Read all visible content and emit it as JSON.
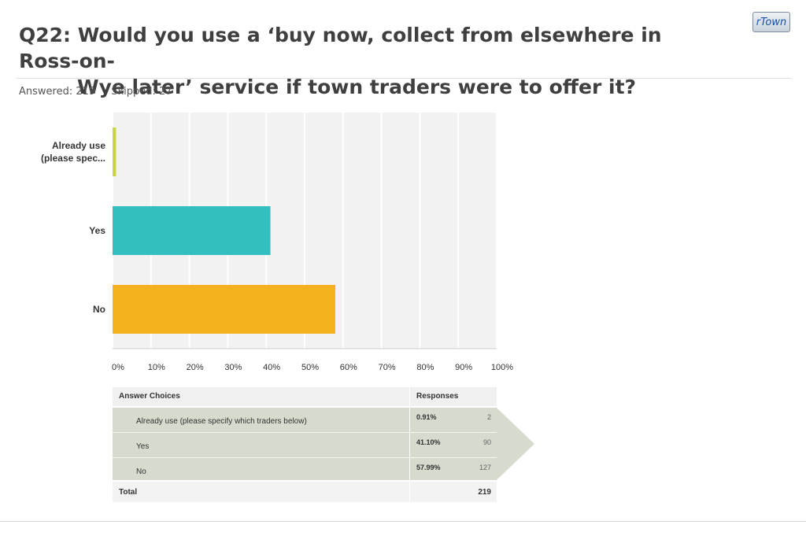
{
  "header": {
    "title_line1": "Q22: Would you use a ‘buy now, collect from elsewhere in Ross-on-",
    "title_line2": "Wye later’ service if town traders were to offer it?",
    "logo_prefix": "r",
    "logo_suffix": "Town",
    "answered": "Answered: 219",
    "skipped": "Skipped: 27"
  },
  "chart_data": {
    "type": "bar",
    "orientation": "horizontal",
    "categories": [
      "Already use (please spec...",
      "Yes",
      "No"
    ],
    "values": [
      0.91,
      41.1,
      57.99
    ],
    "colors": [
      "#c8d640",
      "#33bfc0",
      "#f5b21f"
    ],
    "xlim": [
      0,
      100
    ],
    "xticks": [
      "0%",
      "10%",
      "20%",
      "30%",
      "40%",
      "50%",
      "60%",
      "70%",
      "80%",
      "90%",
      "100%"
    ],
    "grid": true
  },
  "table": {
    "header": {
      "choices": "Answer Choices",
      "responses": "Responses"
    },
    "rows": [
      {
        "label": "Already use (please specify which traders below)",
        "percent": "0.91%",
        "count": "2"
      },
      {
        "label": "Yes",
        "percent": "41.10%",
        "count": "90"
      },
      {
        "label": "No",
        "percent": "57.99%",
        "count": "127"
      }
    ],
    "total_label": "Total",
    "total_count": "219",
    "highlight_color": "#d6dbcd"
  }
}
